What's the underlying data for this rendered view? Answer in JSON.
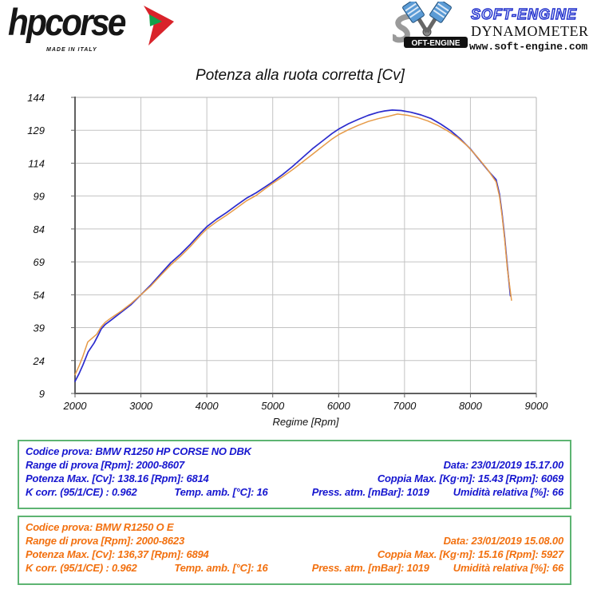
{
  "header": {
    "hpcorse": {
      "brand": "hpcorse",
      "made_in": "MADE IN ITALY",
      "arrow_red": "#d9232a",
      "arrow_green": "#12a14b"
    },
    "softengine": {
      "name": "SOFT-ENGINE",
      "sub": "DYNAMOMETERS",
      "url": "www.soft-engine.com",
      "badge": "OFT-ENGINE"
    }
  },
  "chart_data": {
    "type": "line",
    "title": "Potenza alla ruota corretta [Cv]",
    "xlabel": "Regime [Rpm]",
    "ylabel": "",
    "xlim": [
      2000,
      9000
    ],
    "ylim": [
      9,
      144
    ],
    "xticks": [
      2000,
      3000,
      4000,
      5000,
      6000,
      7000,
      8000,
      9000
    ],
    "yticks": [
      9,
      24,
      39,
      54,
      69,
      84,
      99,
      114,
      129,
      144
    ],
    "grid": true,
    "grid_color": "#c3c3c3",
    "axis_color": "#606060",
    "legend": "none",
    "series": [
      {
        "name": "BMW R1250 HP CORSE NO DBK",
        "color": "#2b2bcd",
        "points": [
          [
            2000,
            14.5
          ],
          [
            2060,
            18
          ],
          [
            2120,
            22
          ],
          [
            2200,
            28
          ],
          [
            2290,
            32
          ],
          [
            2350,
            35.5
          ],
          [
            2400,
            38.5
          ],
          [
            2460,
            40.5
          ],
          [
            2550,
            42.5
          ],
          [
            2700,
            46
          ],
          [
            2850,
            49.5
          ],
          [
            3000,
            54
          ],
          [
            3150,
            58.5
          ],
          [
            3300,
            63.5
          ],
          [
            3450,
            68.5
          ],
          [
            3600,
            72.5
          ],
          [
            3750,
            77
          ],
          [
            3900,
            82
          ],
          [
            4000,
            85
          ],
          [
            4150,
            88.5
          ],
          [
            4300,
            91.5
          ],
          [
            4450,
            94.8
          ],
          [
            4600,
            98
          ],
          [
            4750,
            100.5
          ],
          [
            4900,
            103.5
          ],
          [
            5000,
            105.5
          ],
          [
            5150,
            108.8
          ],
          [
            5300,
            112.5
          ],
          [
            5450,
            116.5
          ],
          [
            5600,
            120.5
          ],
          [
            5750,
            124
          ],
          [
            5900,
            127.5
          ],
          [
            6000,
            129.5
          ],
          [
            6150,
            132
          ],
          [
            6300,
            134
          ],
          [
            6450,
            135.8
          ],
          [
            6600,
            137.2
          ],
          [
            6700,
            137.8
          ],
          [
            6814,
            138.2
          ],
          [
            6950,
            138
          ],
          [
            7100,
            137.2
          ],
          [
            7250,
            136
          ],
          [
            7400,
            134.4
          ],
          [
            7550,
            131.8
          ],
          [
            7700,
            128.8
          ],
          [
            7850,
            125
          ],
          [
            8000,
            120.5
          ],
          [
            8150,
            115
          ],
          [
            8300,
            109.5
          ],
          [
            8390,
            106.5
          ],
          [
            8440,
            100
          ],
          [
            8480,
            91
          ],
          [
            8520,
            80
          ],
          [
            8560,
            67
          ],
          [
            8607,
            53.5
          ]
        ]
      },
      {
        "name": "BMW R1250 O E",
        "color": "#e69a47",
        "points": [
          [
            2000,
            17.5
          ],
          [
            2060,
            21.5
          ],
          [
            2120,
            26
          ],
          [
            2194,
            32.5
          ],
          [
            2260,
            34.2
          ],
          [
            2330,
            36
          ],
          [
            2400,
            39.5
          ],
          [
            2460,
            41.5
          ],
          [
            2550,
            43.5
          ],
          [
            2700,
            46.5
          ],
          [
            2850,
            50
          ],
          [
            3000,
            54
          ],
          [
            3150,
            58
          ],
          [
            3300,
            62.8
          ],
          [
            3450,
            67.5
          ],
          [
            3600,
            71.5
          ],
          [
            3750,
            76
          ],
          [
            3900,
            81
          ],
          [
            4000,
            84
          ],
          [
            4150,
            87.3
          ],
          [
            4300,
            90.3
          ],
          [
            4450,
            93.5
          ],
          [
            4600,
            96.8
          ],
          [
            4750,
            99.3
          ],
          [
            4900,
            102.7
          ],
          [
            5000,
            104.8
          ],
          [
            5150,
            107.8
          ],
          [
            5300,
            111
          ],
          [
            5450,
            114.5
          ],
          [
            5600,
            118
          ],
          [
            5750,
            121.5
          ],
          [
            5900,
            125
          ],
          [
            6000,
            127
          ],
          [
            6150,
            129.3
          ],
          [
            6300,
            131.3
          ],
          [
            6450,
            133
          ],
          [
            6600,
            134.3
          ],
          [
            6750,
            135.3
          ],
          [
            6894,
            136.4
          ],
          [
            7050,
            135.8
          ],
          [
            7200,
            134.8
          ],
          [
            7350,
            133.3
          ],
          [
            7500,
            131.3
          ],
          [
            7650,
            128.8
          ],
          [
            7800,
            125.8
          ],
          [
            7950,
            122
          ],
          [
            8100,
            117
          ],
          [
            8250,
            111.5
          ],
          [
            8390,
            105.5
          ],
          [
            8440,
            99
          ],
          [
            8480,
            90
          ],
          [
            8520,
            79
          ],
          [
            8560,
            66
          ],
          [
            8623,
            51.5
          ]
        ]
      }
    ]
  },
  "info_boxes": [
    {
      "codice": "Codice prova: BMW R1250 HP CORSE NO DBK",
      "range": "Range di prova [Rpm]: 2000-8607",
      "data": "Data: 23/01/2019  15.17.00",
      "potenza": "Potenza Max. [Cv]: 138.16   [Rpm]: 6814",
      "coppia": "Coppia Max. [Kg·m]: 15.43   [Rpm]: 6069",
      "kcorr": "K corr. (95/1/CE) : 0.962",
      "temp": "Temp. amb. [°C]: 16",
      "press": "Press. atm. [mBar]: 1019",
      "umidita": "Umidità relativa [%]: 66",
      "text_color": "#1616cf"
    },
    {
      "codice": "Codice prova: BMW R1250 O E",
      "range": "Range di prova [Rpm]: 2000-8623",
      "data": "Data: 23/01/2019  15.08.00",
      "potenza": "Potenza Max. [Cv]: 136,37   [Rpm]: 6894",
      "coppia": "Coppia Max. [Kg·m]: 15.16   [Rpm]: 5927",
      "kcorr": "K corr. (95/1/CE) : 0.962",
      "temp": "Temp. amb. [°C]: 16",
      "press": "Press. atm. [mBar]: 1019",
      "umidita": "Umidità relativa [%]: 66",
      "text_color": "#f2700f"
    }
  ]
}
